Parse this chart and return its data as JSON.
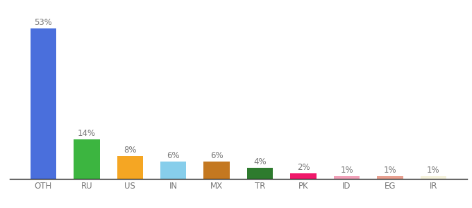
{
  "categories": [
    "OTH",
    "RU",
    "US",
    "IN",
    "MX",
    "TR",
    "PK",
    "ID",
    "EG",
    "IR"
  ],
  "values": [
    53,
    14,
    8,
    6,
    6,
    4,
    2,
    1,
    1,
    1
  ],
  "bar_colors": [
    "#4a6fdc",
    "#3cb540",
    "#f5a623",
    "#87ceeb",
    "#c47820",
    "#2e7b2e",
    "#f0186a",
    "#f0a0b8",
    "#e8a090",
    "#f5f2dc"
  ],
  "background_color": "#ffffff",
  "ylim": [
    0,
    58
  ],
  "label_fontsize": 8.5,
  "tick_fontsize": 8.5,
  "label_color": "#777777"
}
